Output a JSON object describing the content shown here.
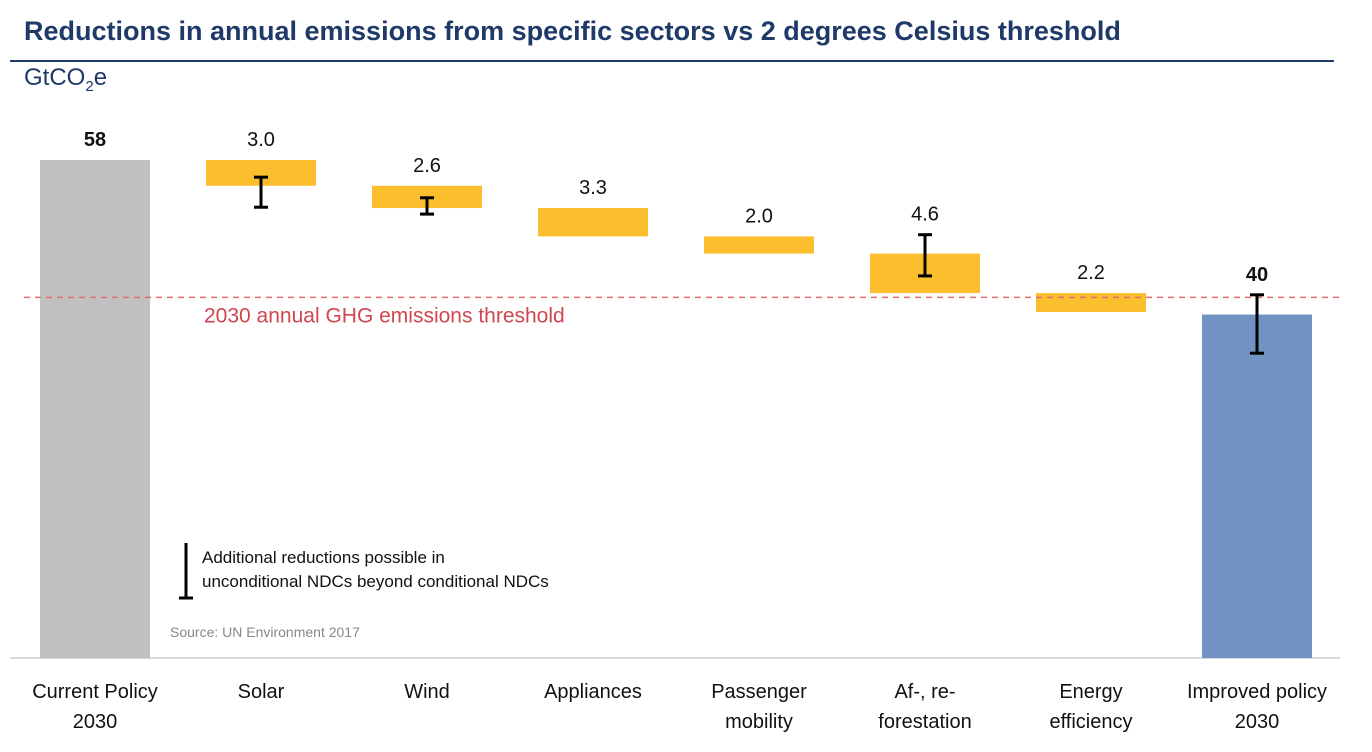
{
  "title": "Reductions in annual emissions from specific sectors vs 2 degrees Celsius threshold",
  "unit": {
    "prefix": "GtCO",
    "sub": "2",
    "suffix": "e"
  },
  "threshold_label": "2030 annual GHG emissions threshold",
  "legend_note": [
    "Additional reductions possible in",
    "unconditional NDCs beyond conditional NDCs"
  ],
  "source": "Source: UN Environment 2017",
  "colors": {
    "current": "#c0c0c0",
    "sector": "#fbbf2e",
    "improved": "#7093c4",
    "threshold": "#e06f73",
    "title": "#1f3a68"
  },
  "chart_data": {
    "type": "bar",
    "subtype": "waterfall",
    "title": "Reductions in annual emissions from specific sectors vs 2 degrees Celsius threshold",
    "ylabel": "GtCO2e",
    "categories": [
      [
        "Current Policy",
        "2030"
      ],
      [
        "Solar"
      ],
      [
        "Wind"
      ],
      [
        "Appliances"
      ],
      [
        "Passenger",
        "mobility"
      ],
      [
        "Af-, re-",
        "forestation"
      ],
      [
        "Energy",
        "efficiency"
      ],
      [
        "Improved policy",
        "2030"
      ]
    ],
    "values": [
      58,
      3.0,
      2.6,
      3.3,
      2.0,
      4.6,
      2.2,
      40
    ],
    "labels": [
      "58",
      "3.0",
      "2.6",
      "3.3",
      "2.0",
      "4.6",
      "2.2",
      "40"
    ],
    "kinds": [
      "total",
      "decrease",
      "decrease",
      "decrease",
      "decrease",
      "decrease",
      "decrease",
      "total"
    ],
    "additional_reduction_ranges": [
      null,
      [
        56.0,
        52.5
      ],
      [
        53.6,
        51.7
      ],
      null,
      null,
      [
        49.3,
        44.5
      ],
      null,
      [
        42.3,
        35.5
      ]
    ],
    "threshold": 42,
    "ylim": [
      0,
      58
    ]
  }
}
